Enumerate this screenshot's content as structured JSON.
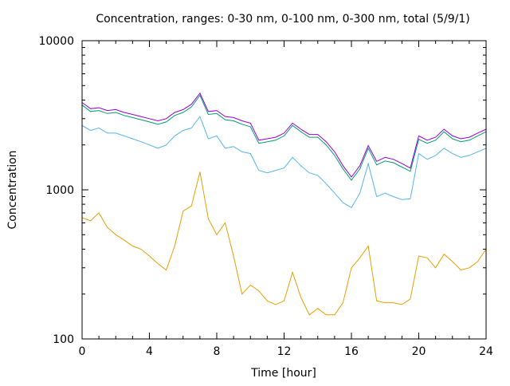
{
  "chart_data": {
    "type": "line",
    "title": "Concentration, ranges: 0-30 nm, 0-100 nm, 0-300 nm, total (5/9/1)",
    "xlabel": "Time [hour]",
    "ylabel": "Concentration",
    "xlim": [
      0,
      24
    ],
    "ylim": [
      100,
      10000
    ],
    "yscale": "log",
    "grid": false,
    "legend": "none",
    "x_ticks": [
      "0",
      "4",
      "8",
      "12",
      "16",
      "20",
      "24"
    ],
    "y_ticks": [
      "100",
      "1000",
      "10000"
    ],
    "x": [
      0,
      0.5,
      1,
      1.5,
      2,
      2.5,
      3,
      3.5,
      4,
      4.5,
      5,
      5.5,
      6,
      6.5,
      7,
      7.5,
      8,
      8.5,
      9,
      9.5,
      10,
      10.5,
      11,
      11.5,
      12,
      12.5,
      13,
      13.5,
      14,
      14.5,
      15,
      15.5,
      16,
      16.5,
      17,
      17.5,
      18,
      18.5,
      19,
      19.5,
      20,
      20.5,
      21,
      21.5,
      22,
      22.5,
      23,
      23.5,
      24
    ],
    "series": [
      {
        "name": "total",
        "color": "#9400d3",
        "values": [
          3850,
          3500,
          3550,
          3400,
          3450,
          3300,
          3200,
          3100,
          3000,
          2900,
          3000,
          3300,
          3450,
          3750,
          4450,
          3350,
          3400,
          3100,
          3050,
          2900,
          2800,
          2150,
          2200,
          2250,
          2400,
          2800,
          2550,
          2350,
          2350,
          2100,
          1800,
          1450,
          1220,
          1450,
          1980,
          1550,
          1650,
          1600,
          1500,
          1400,
          2300,
          2150,
          2250,
          2550,
          2300,
          2200,
          2250,
          2400,
          2550
        ]
      },
      {
        "name": "0-300 nm",
        "color": "#009e73",
        "values": [
          3700,
          3350,
          3400,
          3250,
          3300,
          3150,
          3050,
          2950,
          2850,
          2750,
          2850,
          3150,
          3300,
          3600,
          4300,
          3200,
          3250,
          2950,
          2900,
          2750,
          2650,
          2050,
          2100,
          2150,
          2300,
          2700,
          2450,
          2250,
          2250,
          2000,
          1700,
          1380,
          1160,
          1380,
          1900,
          1470,
          1560,
          1520,
          1420,
          1330,
          2180,
          2050,
          2150,
          2450,
          2200,
          2100,
          2150,
          2300,
          2450
        ]
      },
      {
        "name": "0-100 nm",
        "color": "#56b4e9",
        "values": [
          2700,
          2500,
          2600,
          2400,
          2400,
          2300,
          2200,
          2100,
          2000,
          1900,
          2000,
          2300,
          2500,
          2600,
          3100,
          2200,
          2300,
          1900,
          1950,
          1800,
          1750,
          1350,
          1300,
          1350,
          1400,
          1650,
          1450,
          1300,
          1250,
          1100,
          950,
          820,
          760,
          950,
          1500,
          900,
          950,
          900,
          860,
          870,
          1750,
          1600,
          1700,
          1900,
          1750,
          1650,
          1700,
          1800,
          1900
        ]
      },
      {
        "name": "0-30 nm",
        "color": "#e69f00",
        "values": [
          650,
          620,
          700,
          560,
          500,
          460,
          420,
          400,
          360,
          320,
          290,
          420,
          720,
          780,
          1320,
          640,
          500,
          600,
          360,
          200,
          230,
          210,
          180,
          170,
          180,
          280,
          190,
          145,
          160,
          145,
          145,
          175,
          300,
          350,
          420,
          180,
          175,
          175,
          170,
          185,
          360,
          350,
          300,
          370,
          330,
          290,
          300,
          330,
          400
        ]
      }
    ]
  }
}
